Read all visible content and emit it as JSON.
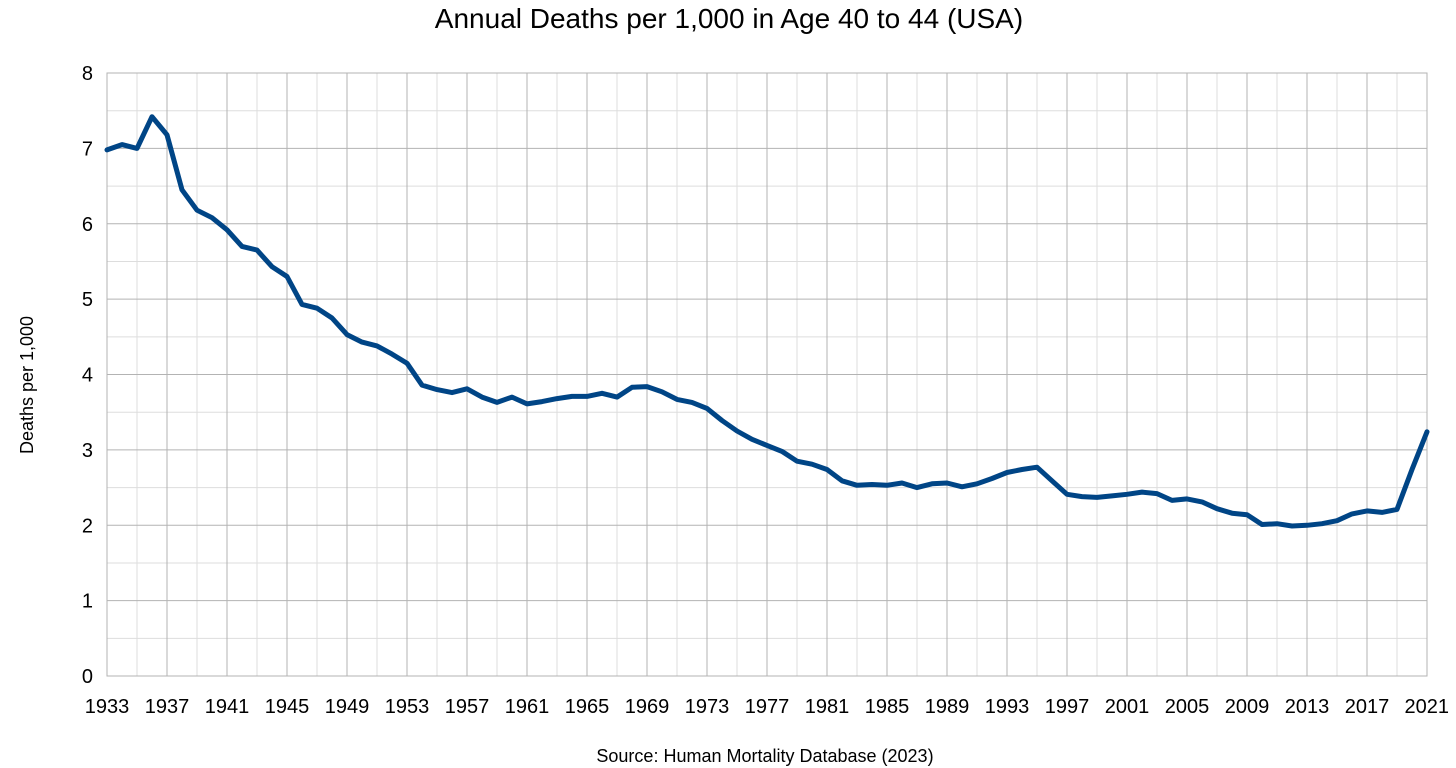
{
  "chart_data": {
    "type": "line",
    "title": "Annual Deaths per 1,000 in Age 40 to 44 (USA)",
    "ylabel": "Deaths per 1,000",
    "xlabel": "",
    "source": "Source: Human Mortality Database (2023)",
    "xlim": [
      1933,
      2021
    ],
    "ylim": [
      0,
      8
    ],
    "x_ticks": [
      1933,
      1937,
      1941,
      1945,
      1949,
      1953,
      1957,
      1961,
      1965,
      1969,
      1973,
      1977,
      1981,
      1985,
      1989,
      1993,
      1997,
      2001,
      2005,
      2009,
      2013,
      2017,
      2021
    ],
    "y_ticks": [
      0,
      1,
      2,
      3,
      4,
      5,
      6,
      7,
      8
    ],
    "grid": true,
    "legend": "none",
    "series": [
      {
        "color": "#004586",
        "x": [
          1933,
          1934,
          1935,
          1936,
          1937,
          1938,
          1939,
          1940,
          1941,
          1942,
          1943,
          1944,
          1945,
          1946,
          1947,
          1948,
          1949,
          1950,
          1951,
          1952,
          1953,
          1954,
          1955,
          1956,
          1957,
          1958,
          1959,
          1960,
          1961,
          1962,
          1963,
          1964,
          1965,
          1966,
          1967,
          1968,
          1969,
          1970,
          1971,
          1972,
          1973,
          1974,
          1975,
          1976,
          1977,
          1978,
          1979,
          1980,
          1981,
          1982,
          1983,
          1984,
          1985,
          1986,
          1987,
          1988,
          1989,
          1990,
          1991,
          1992,
          1993,
          1994,
          1995,
          1996,
          1997,
          1998,
          1999,
          2000,
          2001,
          2002,
          2003,
          2004,
          2005,
          2006,
          2007,
          2008,
          2009,
          2010,
          2011,
          2012,
          2013,
          2014,
          2015,
          2016,
          2017,
          2018,
          2019,
          2020,
          2021
        ],
        "values": [
          6.98,
          7.05,
          7.0,
          7.42,
          7.18,
          6.45,
          6.18,
          6.08,
          5.92,
          5.7,
          5.65,
          5.43,
          5.3,
          4.93,
          4.88,
          4.75,
          4.53,
          4.43,
          4.38,
          4.27,
          4.15,
          3.86,
          3.8,
          3.76,
          3.81,
          3.7,
          3.63,
          3.7,
          3.61,
          3.64,
          3.68,
          3.71,
          3.71,
          3.75,
          3.7,
          3.83,
          3.84,
          3.77,
          3.67,
          3.63,
          3.55,
          3.39,
          3.25,
          3.14,
          3.06,
          2.98,
          2.85,
          2.81,
          2.74,
          2.59,
          2.53,
          2.54,
          2.53,
          2.56,
          2.5,
          2.55,
          2.56,
          2.51,
          2.55,
          2.62,
          2.7,
          2.74,
          2.77,
          2.59,
          2.41,
          2.38,
          2.37,
          2.39,
          2.41,
          2.44,
          2.42,
          2.33,
          2.35,
          2.31,
          2.22,
          2.16,
          2.14,
          2.01,
          2.02,
          1.99,
          2.0,
          2.02,
          2.06,
          2.15,
          2.19,
          2.17,
          2.21,
          2.74,
          3.24
        ]
      }
    ]
  }
}
